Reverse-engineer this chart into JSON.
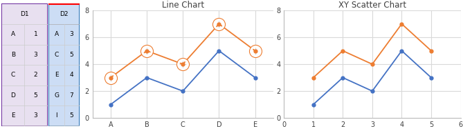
{
  "line_chart": {
    "title": "Line Chart",
    "series1": {
      "x_labels": [
        "A",
        "B",
        "C",
        "D",
        "E"
      ],
      "y": [
        1,
        3,
        2,
        5,
        3
      ],
      "color": "#4472C4"
    },
    "series2": {
      "y": [
        3,
        5,
        4,
        7,
        5
      ],
      "color": "#ED7D31"
    },
    "xlim": [
      -0.5,
      4.5
    ],
    "ylim": [
      0,
      8
    ],
    "yticks": [
      0,
      2,
      4,
      6,
      8
    ],
    "xticks": [
      0,
      1,
      2,
      3,
      4
    ],
    "xticklabels": [
      "A",
      "B",
      "C",
      "D",
      "E"
    ]
  },
  "scatter_chart": {
    "title": "XY Scatter Chart",
    "series1": {
      "x": [
        1,
        2,
        3,
        4,
        5
      ],
      "y": [
        1,
        3,
        2,
        5,
        3
      ],
      "color": "#4472C4"
    },
    "series2": {
      "x": [
        1,
        2,
        3,
        4,
        5
      ],
      "y": [
        3,
        5,
        4,
        7,
        5
      ],
      "color": "#ED7D31"
    },
    "xlim": [
      0,
      6
    ],
    "ylim": [
      0,
      8
    ],
    "yticks": [
      0,
      2,
      4,
      6,
      8
    ],
    "xticks": [
      0,
      1,
      2,
      3,
      4,
      5,
      6
    ]
  },
  "background_color": "#FFFFFF",
  "grid_color": "#D9D9D9",
  "table1": {
    "header": "D1",
    "rows": [
      [
        "A",
        "1"
      ],
      [
        "B",
        "3"
      ],
      [
        "C",
        "2"
      ],
      [
        "D",
        "5"
      ],
      [
        "E",
        "3"
      ]
    ],
    "border_color": "#7030A0",
    "fill_color": "#E8E0F0"
  },
  "table2": {
    "header": "D2",
    "rows": [
      [
        "A",
        "3"
      ],
      [
        "C",
        "5"
      ],
      [
        "E",
        "4"
      ],
      [
        "G",
        "7"
      ],
      [
        "I",
        "5"
      ]
    ],
    "border_color": "#2E75B6",
    "header_border_color": "#FF0000",
    "fill_color": "#CCDDF5"
  }
}
